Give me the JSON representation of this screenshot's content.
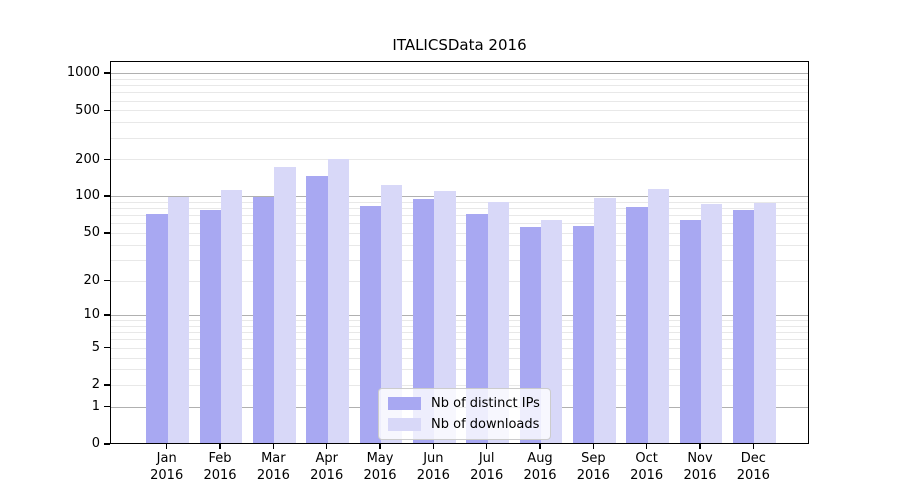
{
  "title": "ITALICSData 2016",
  "chart_data": {
    "type": "bar",
    "title": "ITALICSData 2016",
    "categories": [
      "Jan 2016",
      "Feb 2016",
      "Mar 2016",
      "Apr 2016",
      "May 2016",
      "Jun 2016",
      "Jul 2016",
      "Aug 2016",
      "Sep 2016",
      "Oct 2016",
      "Nov 2016",
      "Dec 2016"
    ],
    "series": [
      {
        "name": "Nb of distinct IPs",
        "color": "#a8a8f2",
        "values": [
          71,
          76,
          97,
          145,
          82,
          93,
          71,
          55,
          56,
          81,
          63,
          76
        ]
      },
      {
        "name": "Nb of downloads",
        "color": "#d8d8f8",
        "values": [
          98,
          111,
          171,
          200,
          121,
          108,
          88,
          63,
          95,
          112,
          85,
          87
        ]
      }
    ],
    "xlabel": "",
    "ylabel": "",
    "yscale": "symlog (log10 of value+1)",
    "ytick_labels": [
      "1000",
      "500",
      "200",
      "100",
      "50",
      "20",
      "10",
      "5",
      "2",
      "1",
      "0"
    ],
    "ytick_values": [
      1000,
      500,
      200,
      100,
      50,
      20,
      10,
      5,
      2,
      1,
      0
    ],
    "ylim": [
      0,
      1270
    ],
    "grid": true,
    "grid_major_color": "#b0b0b0",
    "grid_minor_color": "#e8e8e8",
    "legend_position": "lower center",
    "legend_entries": [
      "Nb of distinct IPs",
      "Nb of downloads"
    ]
  }
}
